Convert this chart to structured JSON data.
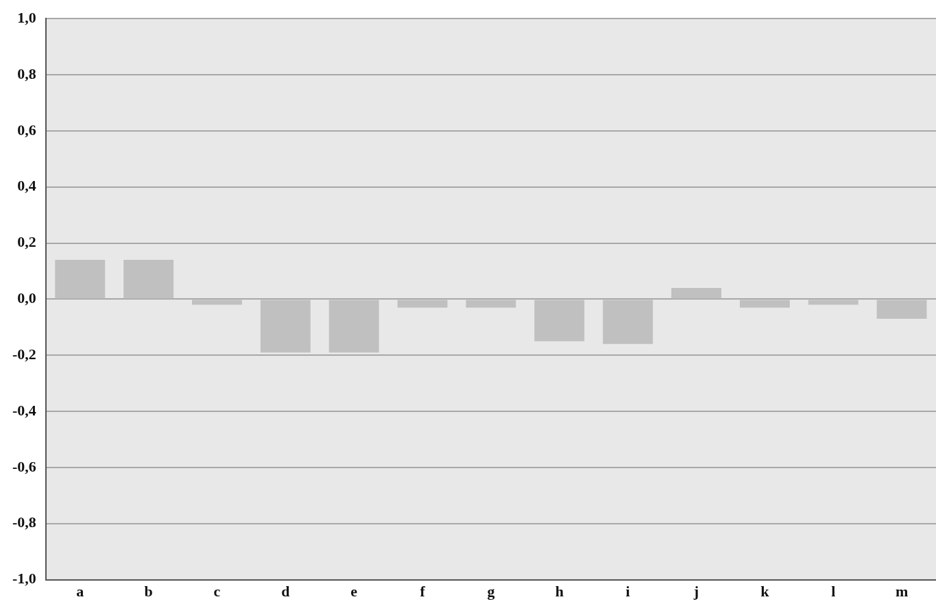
{
  "chart_data": {
    "type": "bar",
    "categories": [
      "a",
      "b",
      "c",
      "d",
      "e",
      "f",
      "g",
      "h",
      "i",
      "j",
      "k",
      "l",
      "m"
    ],
    "values": [
      0.14,
      0.14,
      -0.02,
      -0.19,
      -0.19,
      -0.03,
      -0.03,
      -0.15,
      -0.16,
      0.04,
      -0.03,
      -0.02,
      -0.07
    ],
    "color": "#c0c0c0",
    "ylim": [
      -1.0,
      1.0
    ],
    "yticks": [
      {
        "value": -1.0,
        "label": "-1,0"
      },
      {
        "value": -0.8,
        "label": "-0,8"
      },
      {
        "value": -0.6,
        "label": "-0,6"
      },
      {
        "value": -0.4,
        "label": "-0,4"
      },
      {
        "value": -0.2,
        "label": "-0,2"
      },
      {
        "value": 0.0,
        "label": "0,0"
      },
      {
        "value": 0.2,
        "label": "0,2"
      },
      {
        "value": 0.4,
        "label": "0,4"
      },
      {
        "value": 0.6,
        "label": "0,6"
      },
      {
        "value": 0.8,
        "label": "0,8"
      },
      {
        "value": 1.0,
        "label": "1,0"
      }
    ],
    "grid": "y",
    "legend": false
  }
}
